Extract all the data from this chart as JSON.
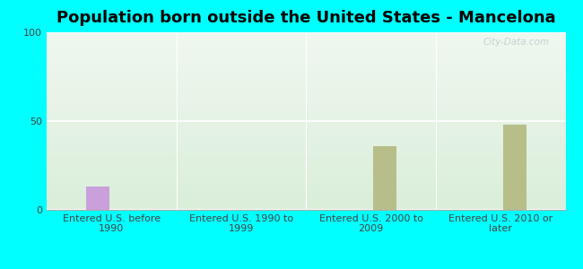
{
  "title": "Population born outside the United States - Mancelona",
  "categories": [
    "Entered U.S. before\n1990",
    "Entered U.S. 1990 to\n1999",
    "Entered U.S. 2000 to\n2009",
    "Entered U.S. 2010 or\nlater"
  ],
  "native_values": [
    13,
    0,
    0,
    0
  ],
  "foreign_born_values": [
    0,
    0,
    36,
    48
  ],
  "native_color": "#c9a0dc",
  "foreign_born_color": "#b8be8a",
  "ylim": [
    0,
    100
  ],
  "yticks": [
    0,
    50,
    100
  ],
  "background_color": "#00ffff",
  "title_fontsize": 13,
  "tick_fontsize": 8,
  "legend_fontsize": 9,
  "watermark": "City-Data.com",
  "bar_width": 0.18,
  "plot_bg_color_top": "#daeeda",
  "plot_bg_color_bottom": "#f0f8f0"
}
